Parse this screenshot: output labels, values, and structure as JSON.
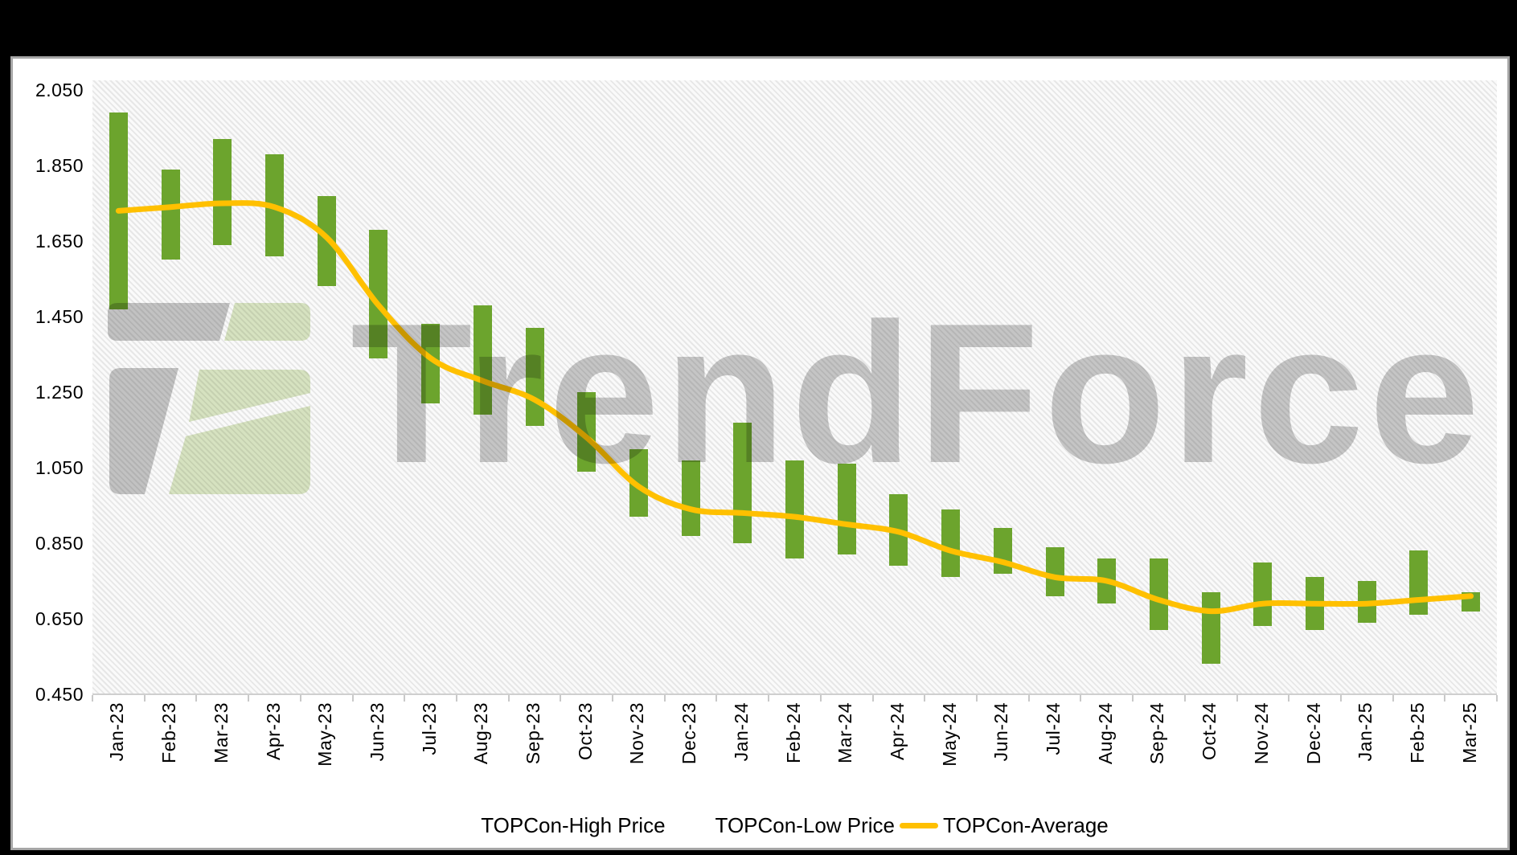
{
  "frame": {
    "background": "#000000",
    "panel_background": "#ffffff",
    "panel_border_color": "#a6a6a6"
  },
  "watermark": {
    "text": "TrendForce",
    "text_color": "#c9c9c9",
    "logo_gray": "#c6c6c6",
    "logo_green": "#dbe7c4"
  },
  "chart_data": {
    "type": "bar",
    "subtype": "floating high-low range bars with average line",
    "title": "",
    "xlabel": "",
    "ylabel": "",
    "grid": false,
    "legend_position": "bottom",
    "ylim": [
      0.45,
      2.076
    ],
    "y_ticks": [
      "2.050",
      "1.850",
      "1.650",
      "1.450",
      "1.250",
      "1.050",
      "0.850",
      "0.650",
      "0.450"
    ],
    "bar_color": "#6CA42D",
    "line_color": "#FFC000",
    "categories": [
      "Jan-23",
      "Feb-23",
      "Mar-23",
      "Apr-23",
      "May-23",
      "Jun-23",
      "Jul-23",
      "Aug-23",
      "Sep-23",
      "Oct-23",
      "Nov-23",
      "Dec-23",
      "Jan-24",
      "Feb-24",
      "Mar-24",
      "Apr-24",
      "May-24",
      "Jun-24",
      "Jul-24",
      "Aug-24",
      "Sep-24",
      "Oct-24",
      "Nov-24",
      "Dec-24",
      "Jan-25",
      "Feb-25",
      "Mar-25"
    ],
    "series": [
      {
        "name": "TOPCon-High Price",
        "type": "bar-high",
        "values": [
          1.99,
          1.84,
          1.92,
          1.88,
          1.77,
          1.68,
          1.43,
          1.48,
          1.42,
          1.25,
          1.1,
          1.07,
          1.17,
          1.07,
          1.06,
          0.98,
          0.94,
          0.89,
          0.84,
          0.81,
          0.81,
          0.72,
          0.8,
          0.76,
          0.75,
          0.83,
          0.72
        ]
      },
      {
        "name": "TOPCon-Low Price",
        "type": "bar-low",
        "values": [
          1.47,
          1.6,
          1.64,
          1.61,
          1.53,
          1.34,
          1.22,
          1.19,
          1.16,
          1.04,
          0.92,
          0.87,
          0.85,
          0.81,
          0.82,
          0.79,
          0.76,
          0.77,
          0.71,
          0.69,
          0.62,
          0.53,
          0.63,
          0.62,
          0.64,
          0.66,
          0.67
        ]
      },
      {
        "name": "TOPCon-Average",
        "type": "line",
        "color": "#FFC000",
        "values": [
          1.73,
          1.74,
          1.75,
          1.74,
          1.66,
          1.48,
          1.34,
          1.28,
          1.23,
          1.13,
          1.0,
          0.94,
          0.93,
          0.92,
          0.9,
          0.88,
          0.83,
          0.8,
          0.76,
          0.75,
          0.7,
          0.67,
          0.69,
          0.69,
          0.69,
          0.7,
          0.71
        ]
      }
    ]
  },
  "legend": {
    "items": [
      {
        "label": "TOPCon-High Price",
        "marker": "none"
      },
      {
        "label": "TOPCon-Low Price",
        "marker": "none"
      },
      {
        "label": "TOPCon-Average",
        "marker": "line",
        "color": "#FFC000"
      }
    ]
  }
}
